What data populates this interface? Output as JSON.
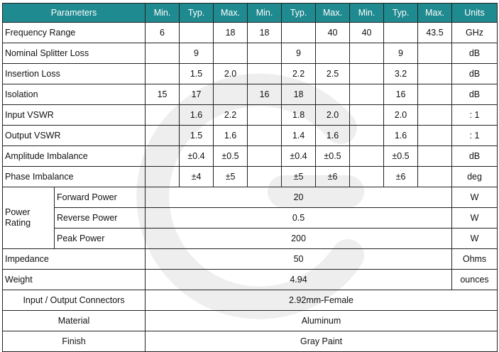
{
  "header": [
    "Parameters",
    "Min.",
    "Typ.",
    "Max.",
    "Min.",
    "Typ.",
    "Max.",
    "Min.",
    "Typ.",
    "Max.",
    "Units"
  ],
  "rows": [
    {
      "param": "Frequency Range",
      "cells": [
        "6",
        "",
        "18",
        "18",
        "",
        "40",
        "40",
        "",
        "43.5"
      ],
      "unit": "GHz"
    },
    {
      "param": "Nominal Splitter Loss",
      "cells": [
        "",
        "9",
        "",
        "",
        "9",
        "",
        "",
        "9",
        ""
      ],
      "unit": "dB"
    },
    {
      "param": "Insertion Loss",
      "cells": [
        "",
        "1.5",
        "2.0",
        "",
        "2.2",
        "2.5",
        "",
        "3.2",
        ""
      ],
      "unit": "dB"
    },
    {
      "param": "Isolation",
      "cells": [
        "15",
        "17",
        "",
        "16",
        "18",
        "",
        "",
        "16",
        ""
      ],
      "unit": "dB"
    },
    {
      "param": "Input VSWR",
      "cells": [
        "",
        "1.6",
        "2.2",
        "",
        "1.8",
        "2.0",
        "",
        "2.0",
        ""
      ],
      "unit": ": 1"
    },
    {
      "param": "Output VSWR",
      "cells": [
        "",
        "1.5",
        "1.6",
        "",
        "1.4",
        "1.6",
        "",
        "1.6",
        ""
      ],
      "unit": ": 1"
    },
    {
      "param": "Amplitude Imbalance",
      "cells": [
        "",
        "±0.4",
        "±0.5",
        "",
        "±0.4",
        "±0.5",
        "",
        "±0.5",
        ""
      ],
      "unit": "dB"
    },
    {
      "param": "Phase Imbalance",
      "cells": [
        "",
        "±4",
        "±5",
        "",
        "±5",
        "±6",
        "",
        "±6",
        ""
      ],
      "unit": "deg"
    }
  ],
  "power": {
    "label": "Power Rating",
    "items": [
      {
        "name": "Forward Power",
        "value": "20",
        "unit": "W"
      },
      {
        "name": "Reverse Power",
        "value": "0.5",
        "unit": "W"
      },
      {
        "name": "Peak Power",
        "value": "200",
        "unit": "W"
      }
    ]
  },
  "impedance": {
    "label": "Impedance",
    "value": "50",
    "unit": "Ohms"
  },
  "weight": {
    "label": "Weight",
    "value": "4.94",
    "unit": "ounces"
  },
  "connectors": {
    "label": "Input / Output Connectors",
    "value": "2.92mm-Female"
  },
  "material": {
    "label": "Material",
    "value": "Aluminum"
  },
  "finish": {
    "label": "Finish",
    "value": "Gray Paint"
  },
  "watermark_icon": "logo-watermark-icon",
  "colors": {
    "header_bg": "#1f8a8f",
    "header_text": "#ffffff",
    "watermark": "#efefef"
  }
}
